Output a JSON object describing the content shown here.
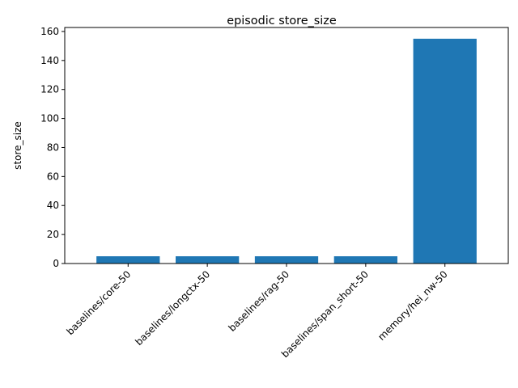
{
  "chart_data": {
    "type": "bar",
    "title": "episodic store_size",
    "xlabel": "",
    "ylabel": "store_size",
    "categories": [
      "baselines/core-50",
      "baselines/longctx-50",
      "baselines/rag-50",
      "baselines/span_short-50",
      "memory/hei_nw-50"
    ],
    "values": [
      5,
      5,
      5,
      5,
      155
    ],
    "ylim": [
      0,
      162.75
    ],
    "yticks": [
      0,
      20,
      40,
      60,
      80,
      100,
      120,
      140,
      160
    ],
    "grid": false,
    "bar_color": "#1f77b4"
  }
}
